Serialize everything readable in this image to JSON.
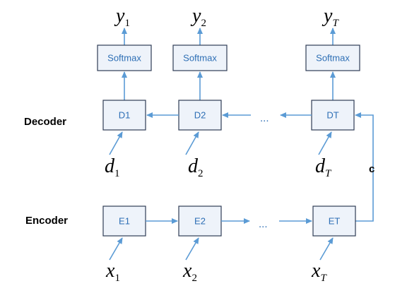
{
  "labels": {
    "decoder": "Decoder",
    "encoder": "Encoder",
    "context": "c",
    "ellipsis": "..."
  },
  "softmax": [
    "Softmax",
    "Softmax",
    "Softmax"
  ],
  "decoder_nodes": [
    "D1",
    "D2",
    "DT"
  ],
  "encoder_nodes": [
    "E1",
    "E2",
    "ET"
  ],
  "outputs": [
    {
      "symbol": "y",
      "sub": "1"
    },
    {
      "symbol": "y",
      "sub": "2"
    },
    {
      "symbol": "y",
      "sub": "T"
    }
  ],
  "decoder_inputs": [
    {
      "symbol": "d",
      "sub": "1"
    },
    {
      "symbol": "d",
      "sub": "2"
    },
    {
      "symbol": "d",
      "sub": "T"
    }
  ],
  "encoder_inputs": [
    {
      "symbol": "x",
      "sub": "1"
    },
    {
      "symbol": "x",
      "sub": "2"
    },
    {
      "symbol": "x",
      "sub": "T"
    }
  ],
  "colors": {
    "arrow": "#5b9bd5",
    "box_fill": "#eef3fa",
    "box_stroke": "#2f3c55",
    "box_text": "#2e6fb5"
  }
}
